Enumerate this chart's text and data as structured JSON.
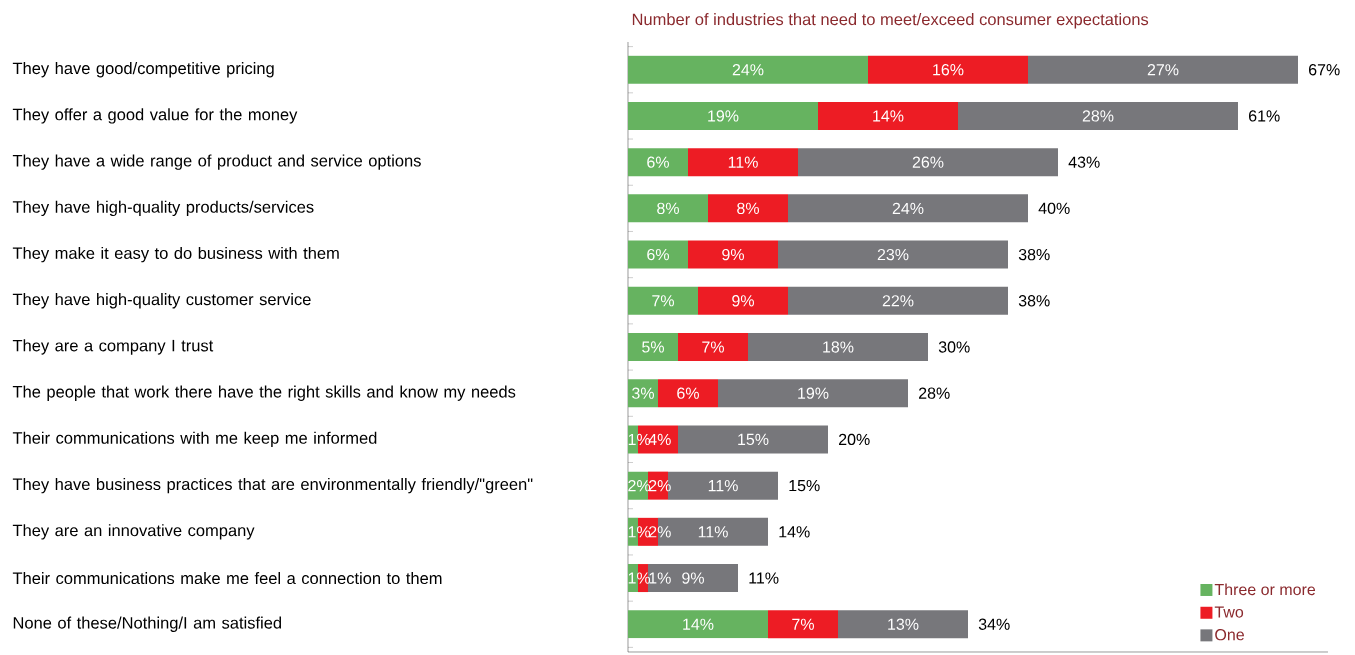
{
  "chart_data": {
    "type": "bar",
    "orientation": "horizontal",
    "stacked": true,
    "title": "Number of industries that need to meet/exceed consumer expectations",
    "categories": [
      "They have good/competitive pricing",
      "They offer a good value for the money",
      "They have a wide range of product and service options",
      "They have high-quality products/services",
      "They make it easy to do business with them",
      "They have high-quality customer service",
      "They are a company I trust",
      "The people that work there have the right skills and know my needs",
      "Their communications with me keep me informed",
      "They have business practices that are environmentally friendly/\"green\"",
      "They are an innovative company",
      "Their communications make me feel a connection to them",
      "None of these/Nothing/I am satisfied"
    ],
    "series": [
      {
        "name": "Three or more",
        "color": "#66b360",
        "values": [
          24,
          19,
          6,
          8,
          6,
          7,
          5,
          3,
          1,
          2,
          1,
          1,
          14
        ],
        "value_labels": [
          "24%",
          "19%",
          "6%",
          "8%",
          "6%",
          "7%",
          "5%",
          "3%",
          "1%",
          "2%",
          "1%",
          "1%",
          "14%"
        ]
      },
      {
        "name": "Two",
        "color": "#ed1c24",
        "values": [
          16,
          14,
          11,
          8,
          9,
          9,
          7,
          6,
          4,
          2,
          2,
          1,
          7
        ],
        "value_labels": [
          "16%",
          "14%",
          "11%",
          "8%",
          "9%",
          "9%",
          "7%",
          "6%",
          "4%",
          "2%",
          "2%",
          "1%",
          "7%"
        ]
      },
      {
        "name": "One",
        "color": "#77777b",
        "values": [
          27,
          28,
          26,
          24,
          23,
          22,
          18,
          19,
          15,
          11,
          11,
          9,
          13
        ],
        "value_labels": [
          "27%",
          "28%",
          "26%",
          "24%",
          "23%",
          "22%",
          "18%",
          "19%",
          "15%",
          "11%",
          "11%",
          "9%",
          "13%"
        ]
      }
    ],
    "totals": [
      "67%",
      "61%",
      "43%",
      "40%",
      "38%",
      "38%",
      "30%",
      "28%",
      "20%",
      "15%",
      "14%",
      "11%",
      "34%"
    ],
    "xlim": [
      0,
      70
    ],
    "tick_labels": "y",
    "legend": "bottom right"
  }
}
